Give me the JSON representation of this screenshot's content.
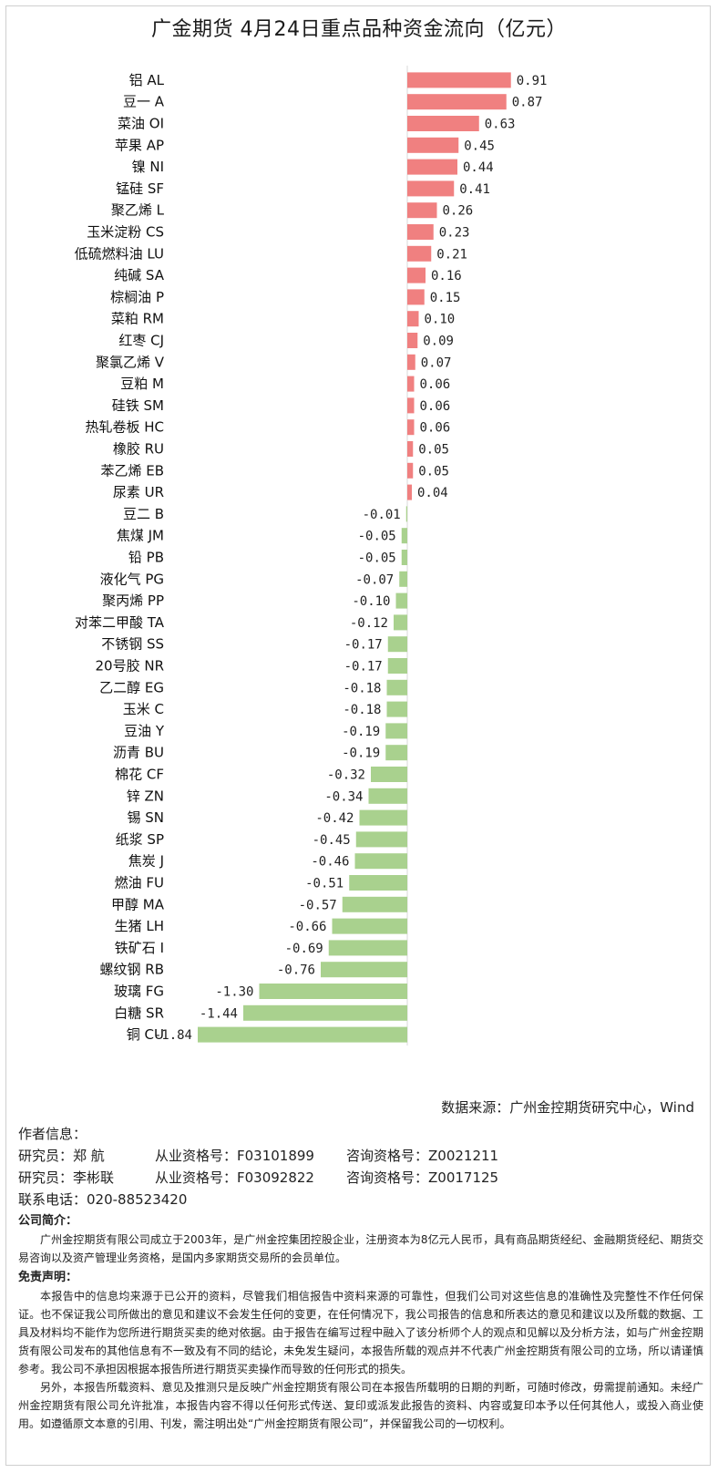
{
  "title": "广金期货 4月24日重点品种资金流向（亿元）",
  "chart_data": {
    "type": "bar",
    "orientation": "horizontal",
    "title": "广金期货 4月24日重点品种资金流向（亿元）",
    "unit": "亿元",
    "categories": [
      "铝 AL",
      "豆一 A",
      "菜油 OI",
      "苹果 AP",
      "镍 NI",
      "锰硅 SF",
      "聚乙烯 L",
      "玉米淀粉 CS",
      "低硫燃料油 LU",
      "纯碱 SA",
      "棕榈油 P",
      "菜粕 RM",
      "红枣 CJ",
      "聚氯乙烯 V",
      "豆粕 M",
      "硅铁 SM",
      "热轧卷板 HC",
      "橡胶 RU",
      "苯乙烯 EB",
      "尿素 UR",
      "豆二 B",
      "焦煤 JM",
      "铅 PB",
      "液化气 PG",
      "聚丙烯 PP",
      "对苯二甲酸 TA",
      "不锈钢 SS",
      "20号胶 NR",
      "乙二醇 EG",
      "玉米 C",
      "豆油 Y",
      "沥青 BU",
      "棉花 CF",
      "锌 ZN",
      "锡 SN",
      "纸浆 SP",
      "焦炭 J",
      "燃油 FU",
      "甲醇 MA",
      "生猪 LH",
      "铁矿石 I",
      "螺纹钢 RB",
      "玻璃 FG",
      "白糖 SR",
      "铜 CU"
    ],
    "values": [
      0.91,
      0.87,
      0.63,
      0.45,
      0.44,
      0.41,
      0.26,
      0.23,
      0.21,
      0.16,
      0.15,
      0.1,
      0.09,
      0.07,
      0.06,
      0.06,
      0.06,
      0.05,
      0.05,
      0.04,
      -0.01,
      -0.05,
      -0.05,
      -0.07,
      -0.1,
      -0.12,
      -0.17,
      -0.17,
      -0.18,
      -0.18,
      -0.19,
      -0.19,
      -0.32,
      -0.34,
      -0.42,
      -0.45,
      -0.46,
      -0.51,
      -0.57,
      -0.66,
      -0.69,
      -0.76,
      -1.3,
      -1.44,
      -1.84
    ],
    "value_labels": [
      "0.91",
      "0.87",
      "0.63",
      "0.45",
      "0.44",
      "0.41",
      "0.26",
      "0.23",
      "0.21",
      "0.16",
      "0.15",
      "0.10",
      "0.09",
      "0.07",
      "0.06",
      "0.06",
      "0.06",
      "0.05",
      "0.05",
      "0.04",
      "-0.01",
      "-0.05",
      "-0.05",
      "-0.07",
      "-0.10",
      "-0.12",
      "-0.17",
      "-0.17",
      "-0.18",
      "-0.18",
      "-0.19",
      "-0.19",
      "-0.32",
      "-0.34",
      "-0.42",
      "-0.45",
      "-0.46",
      "-0.51",
      "-0.57",
      "-0.66",
      "-0.69",
      "-0.76",
      "-1.30",
      "-1.44",
      "-1.84"
    ],
    "xlim": [
      -1.84,
      0.91
    ],
    "colors": {
      "positive": "#f08080",
      "negative": "#a9d18e"
    },
    "grid": false,
    "legend": "none"
  },
  "source": "数据来源：广州金控期货研究中心，Wind",
  "author": {
    "heading": "作者信息：",
    "researchers": [
      {
        "role": "研究员：郑 航",
        "qual": "从业资格号：F03101899",
        "consult": "咨询资格号：Z0021211"
      },
      {
        "role": "研究员：李彬联",
        "qual": "从业资格号：F03092822",
        "consult": "咨询资格号：Z0017125"
      }
    ],
    "phone": "联系电话：020-88523420"
  },
  "company": {
    "heading": "公司简介：",
    "text": "广州金控期货有限公司成立于2003年，是广州金控集团控股企业，注册资本为8亿元人民币，具有商品期货经纪、金融期货经纪、期货交易咨询以及资产管理业务资格，是国内多家期货交易所的会员单位。"
  },
  "disclaimer": {
    "heading": "免责声明：",
    "p1": "本报告中的信息均来源于已公开的资料，尽管我们相信报告中资料来源的可靠性，但我们公司对这些信息的准确性及完整性不作任何保证。也不保证我公司所做出的意见和建议不会发生任何的变更，在任何情况下，我公司报告的信息和所表达的意见和建议以及所载的数据、工具及材料均不能作为您所进行期货买卖的绝对依据。由于报告在编写过程中融入了该分析师个人的观点和见解以及分析方法，如与广州金控期货有限公司发布的其他信息有不一致及有不同的结论，未免发生疑问，本报告所载的观点并不代表广州金控期货有限公司的立场，所以请谨慎参考。我公司不承担因根据本报告所进行期货买卖操作而导致的任何形式的损失。",
    "p2": "另外，本报告所载资料、意见及推测只是反映广州金控期货有限公司在本报告所载明的日期的判断，可随时修改，毋需提前通知。未经广州金控期货有限公司允许批准，本报告内容不得以任何形式传送、复印或派发此报告的资料、内容或复印本予以任何其他人，或投入商业使用。如遵循原文本意的引用、刊发，需注明出处“广州金控期货有限公司”，并保留我公司的一切权利。"
  }
}
